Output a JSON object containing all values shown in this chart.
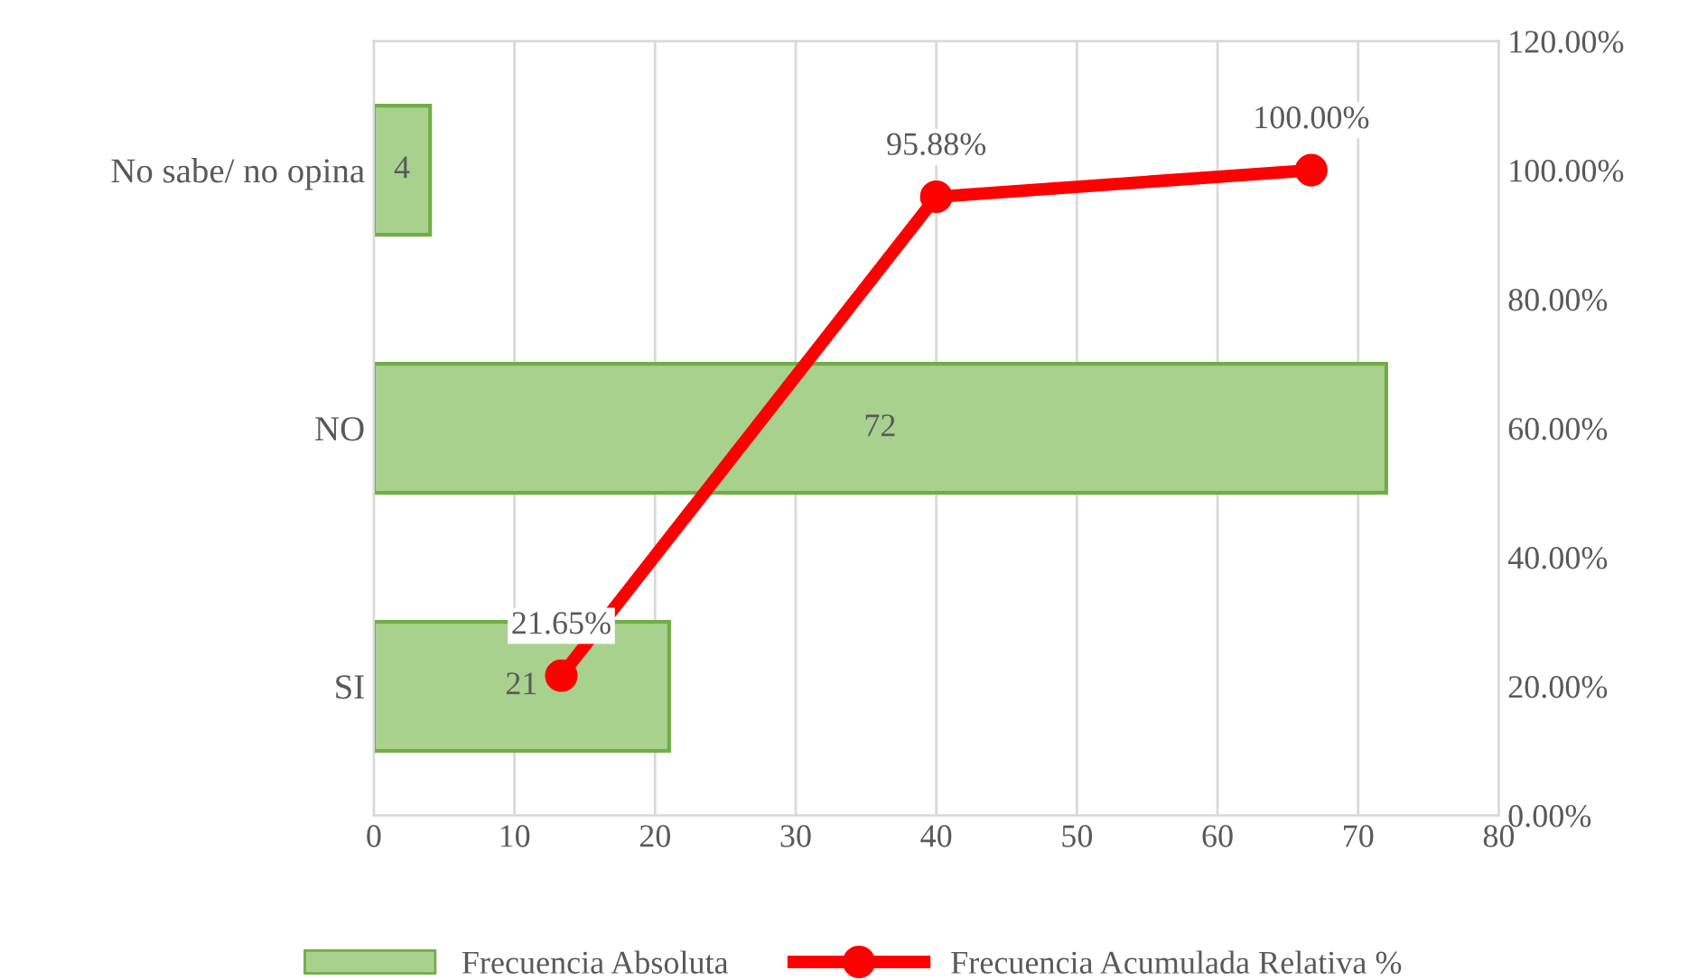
{
  "chart_data": [
    {
      "type": "bar",
      "orientation": "horizontal",
      "categories": [
        "No sabe/ no opina",
        "NO",
        "SI"
      ],
      "xlim": [
        0,
        80
      ],
      "xticks": [
        0,
        10,
        20,
        30,
        40,
        50,
        60,
        70,
        80
      ],
      "grid": "x",
      "legend": "bottom",
      "series": [
        {
          "name": "Frecuencia Absoluta",
          "color": "#a9d18e",
          "values": [
            4,
            72,
            21
          ],
          "value_labels": [
            "4",
            "72",
            "21"
          ]
        }
      ]
    },
    {
      "type": "line",
      "categories": [
        null,
        null,
        null
      ],
      "tick_labels": "y",
      "marker": "circle",
      "legend": "bottom",
      "ylim": [
        0,
        120
      ],
      "yticks": [
        {
          "value": 0,
          "label": "0.00%"
        },
        {
          "value": 20,
          "label": "20.00%"
        },
        {
          "value": 40,
          "label": "40.00%"
        },
        {
          "value": 60,
          "label": "60.00%"
        },
        {
          "value": 80,
          "label": "80.00%"
        },
        {
          "value": 100,
          "label": "100.00%"
        },
        {
          "value": 120,
          "label": "120.00%"
        }
      ],
      "series": [
        {
          "name": "Frecuencia Acumulada Relativa %",
          "color": "#ff0000",
          "values": [
            21.65,
            95.88,
            100
          ],
          "value_labels": [
            "21.65%",
            "95.88%",
            "100.00%"
          ]
        }
      ]
    }
  ]
}
